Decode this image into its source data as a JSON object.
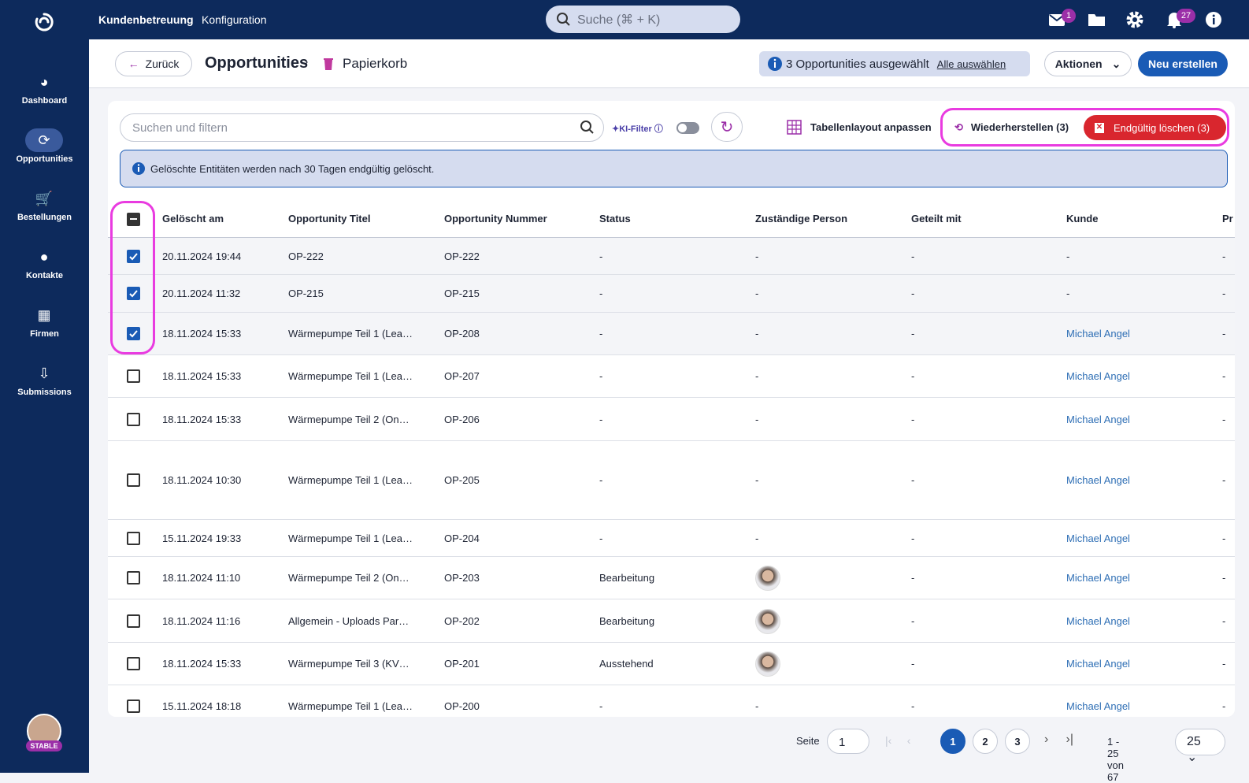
{
  "topbar": {
    "nav": [
      "Kundenbetreuung",
      "Konfiguration"
    ],
    "search_placeholder": "Suche (⌘ + K)",
    "mail_badge": "1",
    "bell_badge": "27"
  },
  "sidebar": {
    "items": [
      "Dashboard",
      "Opportunities",
      "Bestellungen",
      "Kontakte",
      "Firmen",
      "Submissions"
    ],
    "avatar_badge": "STABLE"
  },
  "header": {
    "back": "Zurück",
    "title": "Opportunities",
    "subtitle": "Papierkorb",
    "selection_info": "3 Opportunities ausgewählt",
    "select_all": "Alle auswählen",
    "actions": "Aktionen",
    "create": "Neu erstellen"
  },
  "toolbar": {
    "search_placeholder": "Suchen und filtern",
    "ai_filter": "KI-Filter",
    "table_layout": "Tabellenlayout anpassen",
    "restore": "Wiederherstellen (3)",
    "delete": "Endgültig löschen (3)"
  },
  "notice": "Gelöschte Entitäten werden nach 30 Tagen endgültig gelöscht.",
  "table": {
    "columns": [
      "Gelöscht am",
      "Opportunity Titel",
      "Opportunity Nummer",
      "Status",
      "Zuständige Person",
      "Geteilt mit",
      "Kunde",
      "Pr"
    ],
    "rows": [
      [
        "20.11.2024 19:44",
        "OP-222",
        "OP-222",
        "-",
        "-",
        "-",
        "-",
        "-"
      ],
      [
        "20.11.2024 11:32",
        "OP-215",
        "OP-215",
        "-",
        "-",
        "-",
        "-",
        "-"
      ],
      [
        "18.11.2024 15:33",
        "Wärmepumpe Teil 1 (Lea…",
        "OP-208",
        "-",
        "-",
        "-",
        "Michael Angel",
        "-"
      ],
      [
        "18.11.2024 15:33",
        "Wärmepumpe Teil 1 (Lea…",
        "OP-207",
        "-",
        "-",
        "-",
        "Michael Angel",
        "-"
      ],
      [
        "18.11.2024 15:33",
        "Wärmepumpe Teil 2 (On…",
        "OP-206",
        "-",
        "-",
        "-",
        "Michael Angel",
        "-"
      ],
      [
        "18.11.2024 10:30",
        "Wärmepumpe Teil 1 (Lea…",
        "OP-205",
        "-",
        "-",
        "-",
        "Michael Angel",
        "-"
      ],
      [
        "15.11.2024 19:33",
        "Wärmepumpe Teil 1 (Lea…",
        "OP-204",
        "-",
        "-",
        "-",
        "Michael Angel",
        "-"
      ],
      [
        "18.11.2024 11:10",
        "Wärmepumpe Teil 2 (On…",
        "OP-203",
        "Bearbeitung",
        null,
        "-",
        "Michael Angel",
        "-"
      ],
      [
        "18.11.2024 11:16",
        "Allgemein - Uploads Par…",
        "OP-202",
        "Bearbeitung",
        null,
        "-",
        "Michael Angel",
        "-"
      ],
      [
        "18.11.2024 15:33",
        "Wärmepumpe Teil 3 (KV…",
        "OP-201",
        "Ausstehend",
        null,
        "-",
        "Michael Angel",
        "-"
      ],
      [
        "15.11.2024 18:18",
        "Wärmepumpe Teil 1 (Lea…",
        "OP-200",
        "-",
        "-",
        "-",
        "Michael Angel",
        "-"
      ]
    ],
    "selected": [
      true,
      true,
      true,
      false,
      false,
      false,
      false,
      false,
      false,
      false,
      false
    ]
  },
  "pagination": {
    "page_label": "Seite",
    "page_input": "1",
    "pages": [
      "1",
      "2",
      "3"
    ],
    "range": "1 - 25 von 67",
    "page_size": "25"
  }
}
